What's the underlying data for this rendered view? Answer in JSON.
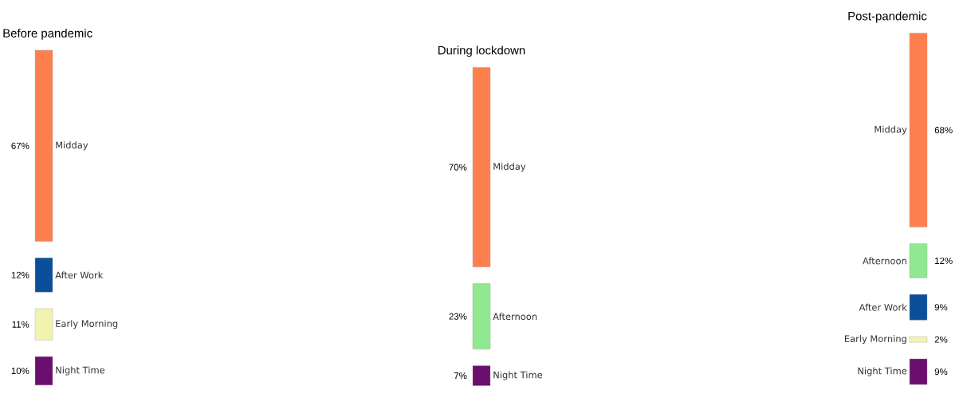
{
  "chart_data": [
    {
      "type": "other",
      "title": "Before pandemic",
      "categories": [
        "Midday",
        "After Work",
        "Early Morning",
        "Night Time"
      ],
      "values": [
        67,
        12,
        11,
        10
      ],
      "value_labels": [
        "67%",
        "12%",
        "11%",
        "10%"
      ],
      "colors": [
        "#fe7f4e",
        "#0a4f9a",
        "#f3f3b0",
        "#6a0f6e"
      ]
    },
    {
      "type": "other",
      "title": "During lockdown",
      "categories": [
        "Midday",
        "Afternoon",
        "Night Time"
      ],
      "values": [
        70,
        23,
        7
      ],
      "value_labels": [
        "70%",
        "23%",
        "7%"
      ],
      "colors": [
        "#fe7f4e",
        "#90e890",
        "#6a0f6e"
      ]
    },
    {
      "type": "other",
      "title": "Post-pandemic",
      "categories": [
        "Midday",
        "Afternoon",
        "After Work",
        "Early Morning",
        "Night Time"
      ],
      "values": [
        68,
        12,
        9,
        2,
        9
      ],
      "value_labels": [
        "68%",
        "12%",
        "9%",
        "2%",
        "9%"
      ],
      "colors": [
        "#fe7f4e",
        "#90e890",
        "#0a4f9a",
        "#f3f3b0",
        "#6a0f6e"
      ]
    }
  ]
}
